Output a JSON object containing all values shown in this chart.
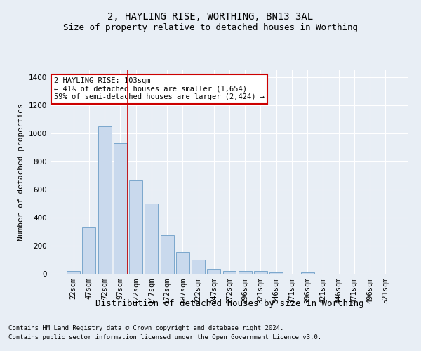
{
  "title1": "2, HAYLING RISE, WORTHING, BN13 3AL",
  "title2": "Size of property relative to detached houses in Worthing",
  "xlabel": "Distribution of detached houses by size in Worthing",
  "ylabel": "Number of detached properties",
  "categories": [
    "22sqm",
    "47sqm",
    "72sqm",
    "97sqm",
    "122sqm",
    "147sqm",
    "172sqm",
    "197sqm",
    "222sqm",
    "247sqm",
    "272sqm",
    "296sqm",
    "321sqm",
    "346sqm",
    "371sqm",
    "396sqm",
    "421sqm",
    "446sqm",
    "471sqm",
    "496sqm",
    "521sqm"
  ],
  "values": [
    20,
    330,
    1050,
    930,
    665,
    500,
    275,
    155,
    100,
    35,
    22,
    20,
    20,
    10,
    0,
    10,
    0,
    0,
    0,
    0,
    0
  ],
  "bar_color": "#c9d9ed",
  "bar_edge_color": "#7ba7cc",
  "red_line_x": 3.5,
  "annotation_text": "2 HAYLING RISE: 103sqm\n← 41% of detached houses are smaller (1,654)\n59% of semi-detached houses are larger (2,424) →",
  "annotation_box_color": "#ffffff",
  "annotation_box_edge": "#cc0000",
  "red_line_color": "#cc0000",
  "footer1": "Contains HM Land Registry data © Crown copyright and database right 2024.",
  "footer2": "Contains public sector information licensed under the Open Government Licence v3.0.",
  "background_color": "#e8eef5",
  "plot_bg_color": "#e8eef5",
  "ylim": [
    0,
    1450
  ],
  "yticks": [
    0,
    200,
    400,
    600,
    800,
    1000,
    1200,
    1400
  ],
  "title1_fontsize": 10,
  "title2_fontsize": 9,
  "xlabel_fontsize": 9,
  "ylabel_fontsize": 8,
  "tick_fontsize": 7.5,
  "annot_fontsize": 7.5,
  "footer_fontsize": 6.5
}
